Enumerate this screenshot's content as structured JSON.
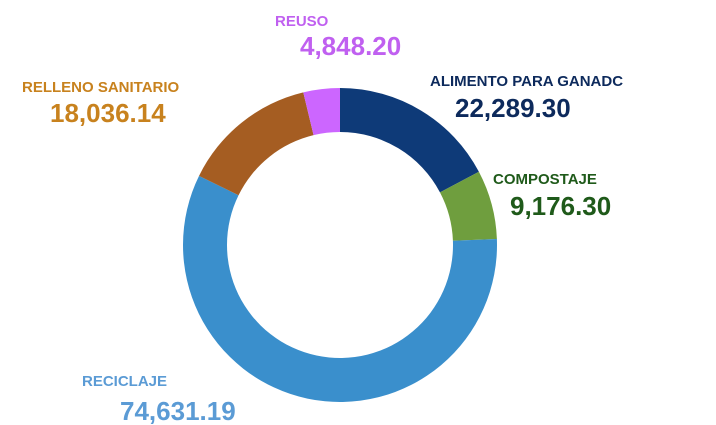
{
  "chart_data": {
    "type": "donut",
    "categories": [
      "ALIMENTO PARA GANADC",
      "COMPOSTAJE",
      "RECICLAJE",
      "RELLENO SANITARIO",
      "REUSO"
    ],
    "values": [
      22289.3,
      9176.3,
      74631.19,
      18036.14,
      4848.2
    ],
    "value_labels": [
      "22,289.30",
      "9,176.30",
      "74,631.19",
      "18,036.14",
      "4,848.20"
    ],
    "colors": [
      "#0e3a78",
      "#6f9e3e",
      "#3a8fcc",
      "#a55d22",
      "#cc66ff"
    ],
    "label_colors": [
      "#0d2a5c",
      "#1f5a1a",
      "#5b9bd5",
      "#c8821e",
      "#c060f0"
    ]
  }
}
